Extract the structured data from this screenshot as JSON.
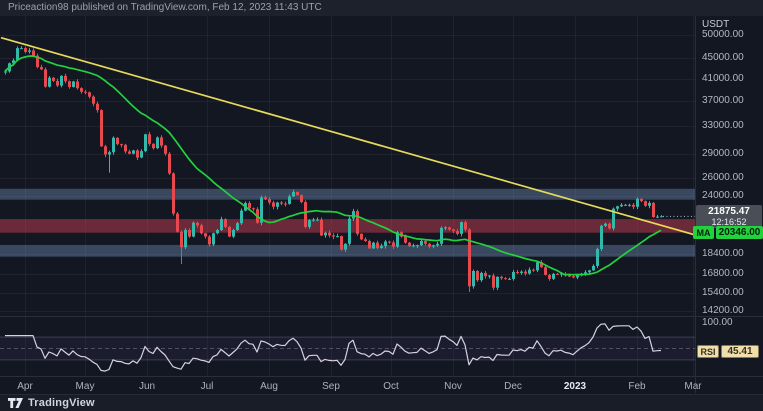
{
  "header": {
    "attribution": "Priceaction98 published on TradingView.com, Feb 12, 2023 11:43 UTC"
  },
  "footer": {
    "brand": "TradingView"
  },
  "price_scale": {
    "currency": "USDT",
    "last_price": "21875.47",
    "last_price_time": "12:16:52",
    "ma_label": "MA",
    "ma_value": "20346.00"
  },
  "rsi_scale": {
    "top_tick": "100.00",
    "label": "RSI",
    "value": "45.41"
  },
  "chart_data": {
    "type": "candlestick",
    "quote": "USDT",
    "scale": "log",
    "start_date": "2022-03-22",
    "interval_days": 2,
    "closes": [
      42350,
      43960,
      44540,
      47100,
      47100,
      46300,
      46600,
      45500,
      43200,
      42750,
      39500,
      41150,
      40550,
      39700,
      41500,
      40500,
      39450,
      40450,
      39250,
      38600,
      38500,
      37750,
      36550,
      35500,
      30100,
      29000,
      29300,
      31300,
      30400,
      30300,
      29400,
      29100,
      29550,
      28600,
      29450,
      31800,
      30450,
      29850,
      31350,
      30200,
      29100,
      26600,
      22150,
      20400,
      19000,
      20550,
      19950,
      21250,
      21000,
      20250,
      19950,
      19250,
      20250,
      20550,
      21600,
      20850,
      19950,
      20550,
      21200,
      22450,
      23250,
      22700,
      22600,
      21250,
      23850,
      23650,
      23300,
      22850,
      23300,
      23175,
      23150,
      23950,
      24450,
      24100,
      23350,
      20850,
      21500,
      21550,
      21550,
      20050,
      20300,
      20050,
      19950,
      19990,
      18800,
      19300,
      21650,
      22400,
      20200,
      19700,
      19550,
      18900,
      19400,
      18925,
      19100,
      19500,
      19425,
      19050,
      20350,
      19950,
      19400,
      19100,
      19150,
      19175,
      19550,
      19300,
      19050,
      19150,
      19300,
      20750,
      20800,
      20600,
      20450,
      20200,
      21300,
      20600,
      15900,
      17050,
      16350,
      16900,
      16650,
      16700,
      15800,
      16600,
      16500,
      16450,
      16450,
      16975,
      16900,
      17000,
      16850,
      17150,
      17100,
      17750,
      17350,
      16750,
      16450,
      16825,
      16800,
      16850,
      16700,
      16650,
      16550,
      16700,
      16850,
      16950,
      17100,
      17450,
      18850,
      20950,
      21150,
      20700,
      22650,
      22900,
      23050,
      23050,
      23050,
      22850,
      23700,
      23450,
      22950,
      23250,
      21800,
      21850,
      21875
    ],
    "wick_overrides": {
      "26": {
        "low": 26700
      },
      "44": {
        "low": 17600
      },
      "116": {
        "low": 15500
      }
    },
    "indicators": {
      "ma_period": 25,
      "ma_current": 20346.0,
      "rsi_period": 7,
      "rsi_current": 45.41,
      "rsi_levels": [
        70,
        50,
        30
      ]
    },
    "zones": [
      {
        "low": 23600,
        "high": 24800,
        "tone": "blue",
        "role": "resistance"
      },
      {
        "low": 20300,
        "high": 21600,
        "tone": "red",
        "role": "flip"
      },
      {
        "low": 18200,
        "high": 19200,
        "tone": "blue",
        "role": "support"
      }
    ],
    "trendline": {
      "start_day": -2,
      "start_price": 49400,
      "end_day": 345,
      "end_price": 20100
    },
    "last": {
      "price": 21875.47,
      "time": "12:16:52"
    },
    "price_ticks": [
      50000,
      45000,
      41000,
      37000,
      33000,
      29000,
      26000,
      24000,
      18400,
      16800,
      15400,
      14200
    ],
    "rsi_top_tick": 100,
    "time_ticks": [
      {
        "label": "Apr",
        "day": 10,
        "major": false
      },
      {
        "label": "May",
        "day": 40,
        "major": false
      },
      {
        "label": "Jun",
        "day": 71,
        "major": false
      },
      {
        "label": "Jul",
        "day": 101,
        "major": false
      },
      {
        "label": "Aug",
        "day": 132,
        "major": false
      },
      {
        "label": "Sep",
        "day": 163,
        "major": false
      },
      {
        "label": "Oct",
        "day": 193,
        "major": false
      },
      {
        "label": "Nov",
        "day": 224,
        "major": false
      },
      {
        "label": "Dec",
        "day": 254,
        "major": false
      },
      {
        "label": "2023",
        "day": 285,
        "major": true
      },
      {
        "label": "Feb",
        "day": 316,
        "major": false
      },
      {
        "label": "Mar",
        "day": 344,
        "major": false
      }
    ],
    "ylim": [
      14200,
      50000
    ]
  },
  "colors": {
    "background": "#131722",
    "up": "#32b9ac",
    "down": "#e8494f",
    "ma": "#23d13e",
    "trendline": "#e7d95a",
    "zone_blue": "rgba(115,148,186,0.40)",
    "zone_red": "rgba(205,62,84,0.48)",
    "rsi_line": "#d7d1e2",
    "grid": "rgba(255,255,255,0.05)",
    "separator": "#2a2e39",
    "last_price_box": "#4a4e57",
    "ma_box": "#23d13e",
    "rsi_box": "#f0dfab"
  }
}
